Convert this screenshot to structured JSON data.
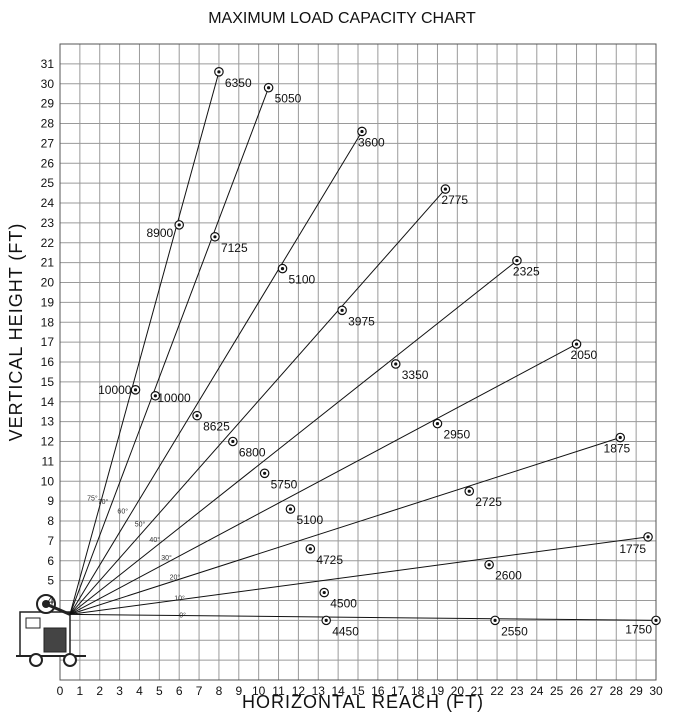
{
  "chart_data": {
    "type": "line",
    "title": "MAXIMUM LOAD CAPACITY CHART",
    "xlabel": "HORIZONTAL REACH (FT)",
    "ylabel": "VERTICAL HEIGHT (FT)",
    "xlim": [
      0,
      30
    ],
    "ylim": [
      2,
      31
    ],
    "x_ticks": [
      "0",
      "1",
      "2",
      "3",
      "4",
      "5",
      "6",
      "7",
      "8",
      "9",
      "10",
      "11",
      "12",
      "13",
      "14",
      "15",
      "16",
      "17",
      "18",
      "19",
      "20",
      "21",
      "22",
      "23",
      "24",
      "25",
      "26",
      "27",
      "28",
      "29",
      "30"
    ],
    "y_ticks": [
      "4",
      "5",
      "6",
      "7",
      "8",
      "9",
      "10",
      "11",
      "12",
      "13",
      "14",
      "15",
      "16",
      "17",
      "18",
      "19",
      "20",
      "21",
      "22",
      "23",
      "24",
      "25",
      "26",
      "27",
      "28",
      "29",
      "30",
      "31"
    ],
    "grid": true,
    "origin": {
      "x": 0.5,
      "y": 3.3
    },
    "series": [
      {
        "angle": "75°",
        "points": [
          {
            "x": 3.8,
            "y": 14.6,
            "label": "10000"
          },
          {
            "x": 6.0,
            "y": 22.9,
            "label": "8900"
          },
          {
            "x": 8.0,
            "y": 30.6,
            "label": "6350"
          }
        ]
      },
      {
        "angle": "70°",
        "points": [
          {
            "x": 4.8,
            "y": 14.3,
            "label": "10000"
          },
          {
            "x": 7.8,
            "y": 22.3,
            "label": "7125"
          },
          {
            "x": 10.5,
            "y": 29.8,
            "label": "5050"
          }
        ]
      },
      {
        "angle": "60°",
        "points": [
          {
            "x": 6.9,
            "y": 13.3,
            "label": "8625"
          },
          {
            "x": 11.2,
            "y": 20.7,
            "label": "5100"
          },
          {
            "x": 15.2,
            "y": 27.6,
            "label": "3600"
          }
        ]
      },
      {
        "angle": "50°",
        "points": [
          {
            "x": 8.7,
            "y": 12.0,
            "label": "6800"
          },
          {
            "x": 14.2,
            "y": 18.6,
            "label": "3975"
          },
          {
            "x": 19.4,
            "y": 24.7,
            "label": "2775"
          }
        ]
      },
      {
        "angle": "40°",
        "points": [
          {
            "x": 10.3,
            "y": 10.4,
            "label": "5750"
          },
          {
            "x": 16.9,
            "y": 15.9,
            "label": "3350"
          },
          {
            "x": 23.0,
            "y": 21.1,
            "label": "2325"
          }
        ]
      },
      {
        "angle": "30°",
        "points": [
          {
            "x": 11.6,
            "y": 8.6,
            "label": "5100"
          },
          {
            "x": 19.0,
            "y": 12.9,
            "label": "2950"
          },
          {
            "x": 26.0,
            "y": 16.9,
            "label": "2050"
          }
        ]
      },
      {
        "angle": "20°",
        "points": [
          {
            "x": 12.6,
            "y": 6.6,
            "label": "4725"
          },
          {
            "x": 20.6,
            "y": 9.5,
            "label": "2725"
          },
          {
            "x": 28.2,
            "y": 12.2,
            "label": "1875"
          }
        ]
      },
      {
        "angle": "10°",
        "points": [
          {
            "x": 13.3,
            "y": 4.4,
            "label": "4500"
          },
          {
            "x": 21.6,
            "y": 5.8,
            "label": "2600"
          },
          {
            "x": 29.6,
            "y": 7.2,
            "label": "1775"
          }
        ]
      },
      {
        "angle": "0°",
        "points": [
          {
            "x": 13.4,
            "y": 3.0,
            "label": "4450"
          },
          {
            "x": 21.9,
            "y": 3.0,
            "label": "2550"
          },
          {
            "x": 30.0,
            "y": 3.0,
            "label": "1750"
          }
        ]
      }
    ]
  }
}
